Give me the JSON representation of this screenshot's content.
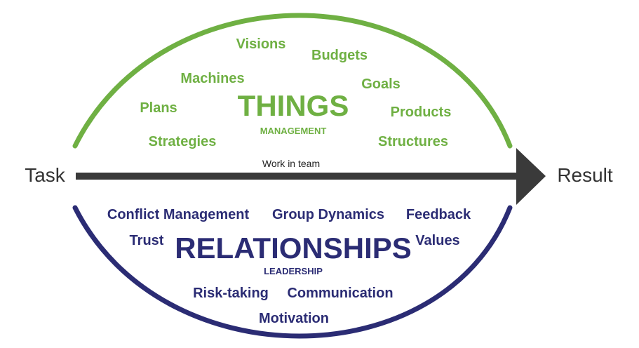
{
  "arrow": {
    "start_label": "Task",
    "end_label": "Result",
    "center_label": "Work in team"
  },
  "things": {
    "title": "THINGS",
    "subtitle": "MANAGEMENT",
    "words": {
      "visions": "Visions",
      "budgets": "Budgets",
      "machines": "Machines",
      "goals": "Goals",
      "plans": "Plans",
      "products": "Products",
      "strategies": "Strategies",
      "structures": "Structures"
    }
  },
  "relationships": {
    "title": "RELATIONSHIPS",
    "subtitle": "LEADERSHIP",
    "words": {
      "conflict_management": "Conflict Management",
      "group_dynamics": "Group Dynamics",
      "feedback": "Feedback",
      "trust": "Trust",
      "values": "Values",
      "risk_taking": "Risk-taking",
      "communication": "Communication",
      "motivation": "Motivation"
    }
  },
  "colors": {
    "green": "#6fb043",
    "navy": "#2b2c74",
    "arrow": "#3a3a3a"
  }
}
